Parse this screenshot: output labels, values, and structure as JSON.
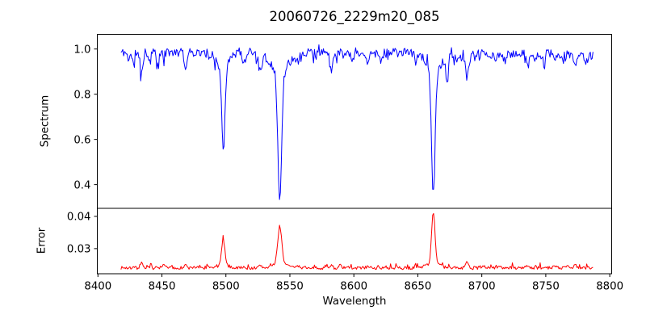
{
  "figure": {
    "title": "20060726_2229m20_085",
    "xlabel": "Wavelength",
    "ylabel_top": "Spectrum",
    "ylabel_bottom": "Error",
    "background": "#ffffff",
    "axis_color": "#000000",
    "spectrum_color": "#0000ff",
    "error_color": "#ff0000"
  },
  "chart_data": [
    {
      "type": "line",
      "panel": "spectrum",
      "title": "20060726_2229m20_085",
      "ylabel": "Spectrum",
      "line_color": "#0000ff",
      "grid": false,
      "legend": null,
      "xlim": [
        8399.5,
        8801.5
      ],
      "ylim": [
        0.295,
        1.065
      ],
      "xticks": [
        8400,
        8450,
        8500,
        8550,
        8600,
        8650,
        8700,
        8750,
        8800
      ],
      "yticks": [
        0.4,
        0.6,
        0.8,
        1.0
      ],
      "ytick_decimals": 1,
      "show_xtick_labels": false,
      "key_points": {
        "continuum_level": 0.985,
        "data_x_range": [
          8418,
          8787
        ],
        "absorption_minima": [
          {
            "wavelength": 8498,
            "flux": 0.55
          },
          {
            "wavelength": 8542,
            "flux": 0.33
          },
          {
            "wavelength": 8662,
            "flux": 0.36
          }
        ]
      },
      "synthesis": {
        "seed": 11,
        "x_start": 8418,
        "x_end": 8787.5,
        "x_step": 0.7,
        "segments": [
          {
            "until": 8663,
            "level": 0.985,
            "noise": 0.018
          },
          {
            "until": 8800,
            "level": 0.976,
            "noise": 0.022
          }
        ],
        "spike_down_prob": 0.12,
        "spike_down_max": 0.045,
        "spike_up_prob": 0.05,
        "spike_up_max": 0.028,
        "lines": [
          {
            "center": 8424.0,
            "amp": -0.03,
            "width": 0.9
          },
          {
            "center": 8427.5,
            "amp": -0.045,
            "width": 0.9
          },
          {
            "center": 8434.0,
            "amp": -0.085,
            "width": 1.0
          },
          {
            "center": 8440.0,
            "amp": -0.03,
            "width": 0.8
          },
          {
            "center": 8446.5,
            "amp": -0.04,
            "width": 0.9
          },
          {
            "center": 8451.5,
            "amp": -0.03,
            "width": 0.8
          },
          {
            "center": 8468.5,
            "amp": -0.075,
            "width": 1.0
          },
          {
            "center": 8488.0,
            "amp": -0.035,
            "width": 0.9
          },
          {
            "center": 8498.0,
            "amp": -0.385,
            "width": 1.3,
            "wing_amp": -0.05,
            "wing_width": 5.0
          },
          {
            "center": 8514.1,
            "amp": -0.055,
            "width": 0.9
          },
          {
            "center": 8527.0,
            "amp": -0.085,
            "width": 1.0
          },
          {
            "center": 8542.1,
            "amp": -0.575,
            "width": 1.5,
            "wing_amp": -0.08,
            "wing_width": 7.0
          },
          {
            "center": 8556.8,
            "amp": -0.035,
            "width": 0.8
          },
          {
            "center": 8582.3,
            "amp": -0.085,
            "width": 1.0
          },
          {
            "center": 8598.8,
            "amp": -0.04,
            "width": 0.9
          },
          {
            "center": 8611.0,
            "amp": -0.06,
            "width": 1.0
          },
          {
            "center": 8621.5,
            "amp": -0.04,
            "width": 0.9
          },
          {
            "center": 8648.5,
            "amp": -0.045,
            "width": 0.9
          },
          {
            "center": 8662.1,
            "amp": -0.56,
            "width": 1.4,
            "wing_amp": -0.065,
            "wing_width": 6.0
          },
          {
            "center": 8673.0,
            "amp": -0.055,
            "width": 0.9
          },
          {
            "center": 8688.6,
            "amp": -0.115,
            "width": 1.1
          },
          {
            "center": 8710.4,
            "amp": -0.04,
            "width": 0.9
          },
          {
            "center": 8718.0,
            "amp": -0.035,
            "width": 0.9
          },
          {
            "center": 8736.0,
            "amp": -0.045,
            "width": 0.9
          },
          {
            "center": 8747.2,
            "amp": -0.035,
            "width": 0.9
          },
          {
            "center": 8757.2,
            "amp": -0.04,
            "width": 0.9
          },
          {
            "center": 8772.9,
            "amp": -0.05,
            "width": 0.9
          },
          {
            "center": 8781.0,
            "amp": -0.03,
            "width": 0.8
          }
        ]
      }
    },
    {
      "type": "line",
      "panel": "error",
      "ylabel": "Error",
      "xlabel": "Wavelength",
      "line_color": "#ff0000",
      "grid": false,
      "legend": null,
      "xlim": [
        8399.5,
        8801.5
      ],
      "ylim": [
        0.0222,
        0.0425
      ],
      "xticks": [
        8400,
        8450,
        8500,
        8550,
        8600,
        8650,
        8700,
        8750,
        8800
      ],
      "yticks": [
        0.03,
        0.04
      ],
      "ytick_decimals": 2,
      "show_xtick_labels": true,
      "key_points": {
        "baseline_level": 0.024,
        "data_x_range": [
          8418,
          8787
        ],
        "peaks": [
          {
            "wavelength": 8498,
            "error": 0.033
          },
          {
            "wavelength": 8542,
            "error": 0.037
          },
          {
            "wavelength": 8662,
            "error": 0.041
          }
        ]
      },
      "synthesis": {
        "seed": 7,
        "x_start": 8418,
        "x_end": 8787.5,
        "x_step": 0.7,
        "segments": [
          {
            "until": 8800,
            "level": 0.024,
            "noise": 0.0005
          }
        ],
        "spike_down_prob": 0.0,
        "spike_down_max": 0.0,
        "spike_up_prob": 0.1,
        "spike_up_max": 0.0012,
        "lines": [
          {
            "center": 8434.0,
            "amp": 0.0014,
            "width": 1.2
          },
          {
            "center": 8451.5,
            "amp": 0.0006,
            "width": 1.0
          },
          {
            "center": 8468.5,
            "amp": 0.0008,
            "width": 1.0
          },
          {
            "center": 8498.0,
            "amp": 0.0078,
            "width": 1.2,
            "wing_amp": 0.001,
            "wing_width": 4.0
          },
          {
            "center": 8514.1,
            "amp": 0.0006,
            "width": 1.0
          },
          {
            "center": 8527.0,
            "amp": 0.0008,
            "width": 1.0
          },
          {
            "center": 8542.1,
            "amp": 0.0115,
            "width": 1.5,
            "wing_amp": 0.0016,
            "wing_width": 5.0
          },
          {
            "center": 8556.8,
            "amp": 0.0006,
            "width": 1.0
          },
          {
            "center": 8582.3,
            "amp": 0.001,
            "width": 1.0
          },
          {
            "center": 8611.0,
            "amp": 0.0007,
            "width": 1.0
          },
          {
            "center": 8648.5,
            "amp": 0.0006,
            "width": 1.0
          },
          {
            "center": 8662.1,
            "amp": 0.016,
            "width": 1.3,
            "wing_amp": 0.0015,
            "wing_width": 5.0
          },
          {
            "center": 8688.6,
            "amp": 0.0016,
            "width": 1.2
          },
          {
            "center": 8714.0,
            "amp": 0.0007,
            "width": 1.0
          },
          {
            "center": 8736.0,
            "amp": 0.0008,
            "width": 1.0
          },
          {
            "center": 8757.2,
            "amp": 0.0007,
            "width": 1.0
          },
          {
            "center": 8767.0,
            "amp": 0.001,
            "width": 1.2
          },
          {
            "center": 8773.0,
            "amp": 0.0008,
            "width": 1.0
          }
        ]
      }
    }
  ]
}
